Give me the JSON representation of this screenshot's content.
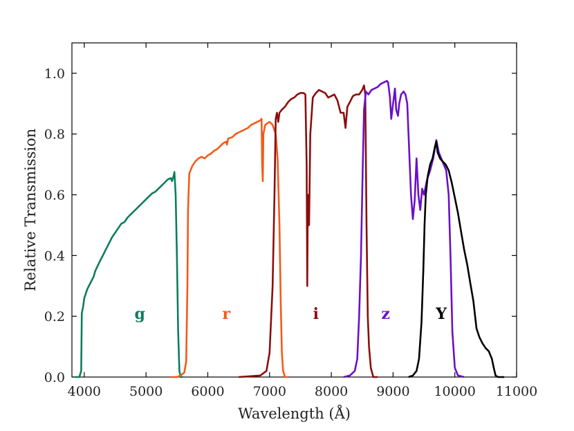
{
  "chart_data": {
    "type": "line",
    "title": "",
    "xlabel": "Wavelength (Å)",
    "ylabel": "Relative Transmission",
    "xlim": [
      3800,
      11000
    ],
    "ylim": [
      0.0,
      1.1
    ],
    "xticks": [
      4000,
      5000,
      6000,
      7000,
      8000,
      9000,
      10000,
      11000
    ],
    "yticks": [
      0.0,
      0.2,
      0.4,
      0.6,
      0.8,
      1.0
    ],
    "xtick_labels": [
      "4000",
      "5000",
      "6000",
      "7000",
      "8000",
      "9000",
      "10000",
      "11000"
    ],
    "ytick_labels": [
      "0.0",
      "0.2",
      "0.4",
      "0.6",
      "0.8",
      "1.0"
    ],
    "grid": false,
    "legend": "none",
    "series": [
      {
        "name": "g",
        "color": "#0c7d5e",
        "label_pos": [
          4900,
          0.21
        ],
        "points": [
          [
            3850,
            0
          ],
          [
            3920,
            0.0
          ],
          [
            3950,
            0.02
          ],
          [
            3960,
            0.21
          ],
          [
            3980,
            0.23
          ],
          [
            4000,
            0.26
          ],
          [
            4050,
            0.29
          ],
          [
            4100,
            0.31
          ],
          [
            4150,
            0.33
          ],
          [
            4180,
            0.35
          ],
          [
            4250,
            0.38
          ],
          [
            4300,
            0.4
          ],
          [
            4350,
            0.42
          ],
          [
            4400,
            0.44
          ],
          [
            4450,
            0.46
          ],
          [
            4500,
            0.475
          ],
          [
            4550,
            0.49
          ],
          [
            4600,
            0.505
          ],
          [
            4650,
            0.51
          ],
          [
            4700,
            0.525
          ],
          [
            4750,
            0.535
          ],
          [
            4800,
            0.545
          ],
          [
            4850,
            0.555
          ],
          [
            4900,
            0.565
          ],
          [
            4950,
            0.575
          ],
          [
            5000,
            0.585
          ],
          [
            5050,
            0.595
          ],
          [
            5100,
            0.605
          ],
          [
            5150,
            0.61
          ],
          [
            5200,
            0.62
          ],
          [
            5250,
            0.63
          ],
          [
            5300,
            0.64
          ],
          [
            5350,
            0.65
          ],
          [
            5400,
            0.655
          ],
          [
            5420,
            0.645
          ],
          [
            5450,
            0.665
          ],
          [
            5460,
            0.675
          ],
          [
            5480,
            0.6
          ],
          [
            5500,
            0.4
          ],
          [
            5520,
            0.15
          ],
          [
            5540,
            0.02
          ],
          [
            5560,
            0.0
          ],
          [
            5600,
            0
          ]
        ]
      },
      {
        "name": "r",
        "color": "#f25a1a",
        "label_pos": [
          6300,
          0.21
        ],
        "points": [
          [
            5400,
            0
          ],
          [
            5500,
            0.0
          ],
          [
            5560,
            0.005
          ],
          [
            5620,
            0.015
          ],
          [
            5650,
            0.05
          ],
          [
            5670,
            0.3
          ],
          [
            5680,
            0.55
          ],
          [
            5700,
            0.67
          ],
          [
            5750,
            0.695
          ],
          [
            5800,
            0.71
          ],
          [
            5850,
            0.72
          ],
          [
            5900,
            0.725
          ],
          [
            5950,
            0.72
          ],
          [
            6000,
            0.73
          ],
          [
            6050,
            0.735
          ],
          [
            6100,
            0.745
          ],
          [
            6150,
            0.75
          ],
          [
            6200,
            0.76
          ],
          [
            6250,
            0.77
          ],
          [
            6300,
            0.775
          ],
          [
            6310,
            0.765
          ],
          [
            6330,
            0.785
          ],
          [
            6400,
            0.79
          ],
          [
            6450,
            0.8
          ],
          [
            6500,
            0.805
          ],
          [
            6550,
            0.81
          ],
          [
            6600,
            0.815
          ],
          [
            6650,
            0.82
          ],
          [
            6700,
            0.83
          ],
          [
            6750,
            0.835
          ],
          [
            6800,
            0.84
          ],
          [
            6850,
            0.845
          ],
          [
            6870,
            0.85
          ],
          [
            6880,
            0.7
          ],
          [
            6890,
            0.645
          ],
          [
            6900,
            0.8
          ],
          [
            6930,
            0.83
          ],
          [
            6960,
            0.835
          ],
          [
            7000,
            0.84
          ],
          [
            7050,
            0.83
          ],
          [
            7100,
            0.8
          ],
          [
            7130,
            0.72
          ],
          [
            7160,
            0.5
          ],
          [
            7180,
            0.25
          ],
          [
            7200,
            0.08
          ],
          [
            7220,
            0.02
          ],
          [
            7250,
            0.0
          ],
          [
            7300,
            0
          ]
        ]
      },
      {
        "name": "i",
        "color": "#8b0d0d",
        "label_pos": [
          7750,
          0.21
        ],
        "points": [
          [
            6500,
            0
          ],
          [
            6850,
            0.005
          ],
          [
            6950,
            0.02
          ],
          [
            7000,
            0.08
          ],
          [
            7050,
            0.3
          ],
          [
            7080,
            0.6
          ],
          [
            7100,
            0.85
          ],
          [
            7120,
            0.87
          ],
          [
            7140,
            0.84
          ],
          [
            7160,
            0.87
          ],
          [
            7200,
            0.88
          ],
          [
            7250,
            0.89
          ],
          [
            7300,
            0.905
          ],
          [
            7350,
            0.915
          ],
          [
            7400,
            0.92
          ],
          [
            7450,
            0.93
          ],
          [
            7500,
            0.935
          ],
          [
            7550,
            0.935
          ],
          [
            7580,
            0.93
          ],
          [
            7600,
            0.7
          ],
          [
            7610,
            0.3
          ],
          [
            7620,
            0.6
          ],
          [
            7640,
            0.5
          ],
          [
            7660,
            0.8
          ],
          [
            7700,
            0.92
          ],
          [
            7750,
            0.935
          ],
          [
            7800,
            0.945
          ],
          [
            7850,
            0.94
          ],
          [
            7900,
            0.935
          ],
          [
            7950,
            0.92
          ],
          [
            8000,
            0.925
          ],
          [
            8050,
            0.93
          ],
          [
            8100,
            0.91
          ],
          [
            8150,
            0.87
          ],
          [
            8200,
            0.87
          ],
          [
            8230,
            0.82
          ],
          [
            8260,
            0.89
          ],
          [
            8300,
            0.905
          ],
          [
            8350,
            0.925
          ],
          [
            8400,
            0.93
          ],
          [
            8450,
            0.93
          ],
          [
            8500,
            0.945
          ],
          [
            8530,
            0.96
          ],
          [
            8550,
            0.93
          ],
          [
            8570,
            0.5
          ],
          [
            8590,
            0.2
          ],
          [
            8610,
            0.1
          ],
          [
            8640,
            0.03
          ],
          [
            8680,
            0.0
          ],
          [
            8750,
            0
          ]
        ]
      },
      {
        "name": "z",
        "color": "#6a10c8",
        "label_pos": [
          8880,
          0.21
        ],
        "points": [
          [
            8200,
            0
          ],
          [
            8300,
            0.005
          ],
          [
            8380,
            0.02
          ],
          [
            8420,
            0.06
          ],
          [
            8450,
            0.2
          ],
          [
            8480,
            0.4
          ],
          [
            8510,
            0.7
          ],
          [
            8530,
            0.88
          ],
          [
            8560,
            0.94
          ],
          [
            8600,
            0.93
          ],
          [
            8650,
            0.945
          ],
          [
            8700,
            0.95
          ],
          [
            8750,
            0.955
          ],
          [
            8800,
            0.965
          ],
          [
            8850,
            0.97
          ],
          [
            8900,
            0.975
          ],
          [
            8920,
            0.97
          ],
          [
            8950,
            0.92
          ],
          [
            8970,
            0.85
          ],
          [
            9000,
            0.9
          ],
          [
            9030,
            0.95
          ],
          [
            9050,
            0.88
          ],
          [
            9080,
            0.86
          ],
          [
            9100,
            0.9
          ],
          [
            9130,
            0.93
          ],
          [
            9170,
            0.94
          ],
          [
            9200,
            0.93
          ],
          [
            9230,
            0.9
          ],
          [
            9260,
            0.75
          ],
          [
            9290,
            0.6
          ],
          [
            9320,
            0.52
          ],
          [
            9350,
            0.58
          ],
          [
            9380,
            0.72
          ],
          [
            9410,
            0.6
          ],
          [
            9440,
            0.55
          ],
          [
            9470,
            0.62
          ],
          [
            9500,
            0.6
          ],
          [
            9550,
            0.65
          ],
          [
            9600,
            0.68
          ],
          [
            9650,
            0.72
          ],
          [
            9700,
            0.78
          ],
          [
            9740,
            0.74
          ],
          [
            9780,
            0.72
          ],
          [
            9820,
            0.7
          ],
          [
            9860,
            0.68
          ],
          [
            9900,
            0.6
          ],
          [
            9930,
            0.4
          ],
          [
            9960,
            0.15
          ],
          [
            10000,
            0.03
          ],
          [
            10050,
            0.005
          ],
          [
            10150,
            0
          ]
        ]
      },
      {
        "name": "Y",
        "color": "#000000",
        "label_pos": [
          9780,
          0.21
        ],
        "points": [
          [
            9250,
            0
          ],
          [
            9320,
            0.005
          ],
          [
            9380,
            0.02
          ],
          [
            9420,
            0.06
          ],
          [
            9460,
            0.18
          ],
          [
            9490,
            0.35
          ],
          [
            9510,
            0.5
          ],
          [
            9530,
            0.6
          ],
          [
            9560,
            0.66
          ],
          [
            9600,
            0.7
          ],
          [
            9640,
            0.72
          ],
          [
            9680,
            0.76
          ],
          [
            9700,
            0.775
          ],
          [
            9720,
            0.74
          ],
          [
            9760,
            0.72
          ],
          [
            9800,
            0.71
          ],
          [
            9850,
            0.7
          ],
          [
            9900,
            0.68
          ],
          [
            9950,
            0.64
          ],
          [
            10000,
            0.59
          ],
          [
            10050,
            0.54
          ],
          [
            10100,
            0.48
          ],
          [
            10150,
            0.42
          ],
          [
            10200,
            0.37
          ],
          [
            10250,
            0.31
          ],
          [
            10300,
            0.25
          ],
          [
            10350,
            0.16
          ],
          [
            10400,
            0.13
          ],
          [
            10450,
            0.11
          ],
          [
            10500,
            0.095
          ],
          [
            10550,
            0.085
          ],
          [
            10600,
            0.06
          ],
          [
            10630,
            0.03
          ],
          [
            10660,
            0.005
          ],
          [
            10700,
            0.0
          ],
          [
            10800,
            0
          ]
        ]
      }
    ]
  }
}
